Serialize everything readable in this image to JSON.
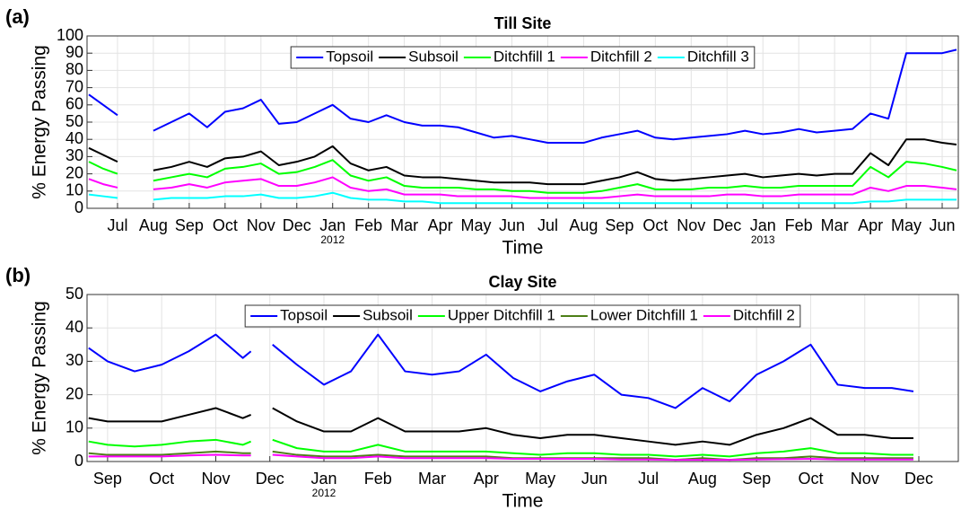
{
  "chart_data": [
    {
      "type": "line",
      "panel_label": "(a)",
      "title": "Till Site",
      "x_label": "Time",
      "y_label": "% Energy Passing",
      "legend": "upper center",
      "grid": true,
      "xlim": [
        -0.85,
        23.45
      ],
      "ylim": [
        0,
        100
      ],
      "xticks": [
        {
          "value": 0,
          "label": "Jul"
        },
        {
          "value": 1,
          "label": "Aug"
        },
        {
          "value": 2,
          "label": "Sep"
        },
        {
          "value": 3,
          "label": "Oct"
        },
        {
          "value": 4,
          "label": "Nov"
        },
        {
          "value": 5,
          "label": "Dec"
        },
        {
          "value": 6,
          "label": "Jan"
        },
        {
          "value": 7,
          "label": "Feb"
        },
        {
          "value": 8,
          "label": "Mar"
        },
        {
          "value": 9,
          "label": "Apr"
        },
        {
          "value": 10,
          "label": "May"
        },
        {
          "value": 11,
          "label": "Jun"
        },
        {
          "value": 12,
          "label": "Jul"
        },
        {
          "value": 13,
          "label": "Aug"
        },
        {
          "value": 14,
          "label": "Sep"
        },
        {
          "value": 15,
          "label": "Oct"
        },
        {
          "value": 16,
          "label": "Nov"
        },
        {
          "value": 17,
          "label": "Dec"
        },
        {
          "value": 18,
          "label": "Jan"
        },
        {
          "value": 19,
          "label": "Feb"
        },
        {
          "value": 20,
          "label": "Mar"
        },
        {
          "value": 21,
          "label": "Apr"
        },
        {
          "value": 22,
          "label": "May"
        },
        {
          "value": 23,
          "label": "Jun"
        }
      ],
      "year_labels": [
        {
          "value": 6,
          "label": "2012"
        },
        {
          "value": 18,
          "label": "2013"
        }
      ],
      "yticks": [
        0,
        10,
        20,
        30,
        40,
        50,
        60,
        70,
        80,
        90,
        100
      ],
      "x": [
        -0.8,
        -0.4,
        0,
        0.5,
        1,
        1.5,
        2,
        2.5,
        3,
        3.5,
        4,
        4.5,
        5,
        5.5,
        6,
        6.5,
        7,
        7.5,
        8,
        8.5,
        9,
        9.5,
        10,
        10.5,
        11,
        11.5,
        12,
        12.5,
        13,
        13.5,
        14,
        14.5,
        15,
        15.5,
        16,
        16.5,
        17,
        17.5,
        18,
        18.5,
        19,
        19.5,
        20,
        20.5,
        21,
        21.5,
        22,
        22.5,
        23,
        23.4
      ],
      "series": [
        {
          "name": "Topsoil",
          "color": "#0000ff",
          "values": [
            66,
            60,
            54,
            null,
            45,
            50,
            55,
            47,
            56,
            58,
            63,
            49,
            50,
            55,
            60,
            52,
            50,
            54,
            50,
            48,
            48,
            47,
            44,
            41,
            42,
            40,
            38,
            38,
            38,
            41,
            43,
            45,
            41,
            40,
            41,
            42,
            43,
            45,
            43,
            44,
            46,
            44,
            45,
            46,
            55,
            52,
            90,
            90,
            90,
            92
          ]
        },
        {
          "name": "Subsoil",
          "color": "#000000",
          "values": [
            35,
            31,
            27,
            null,
            22,
            24,
            27,
            24,
            29,
            30,
            33,
            25,
            27,
            30,
            36,
            26,
            22,
            24,
            19,
            18,
            18,
            17,
            16,
            15,
            15,
            15,
            14,
            14,
            14,
            16,
            18,
            21,
            17,
            16,
            17,
            18,
            19,
            20,
            18,
            19,
            20,
            19,
            20,
            20,
            32,
            25,
            40,
            40,
            38,
            37
          ]
        },
        {
          "name": "Ditchfill 1",
          "color": "#00ff00",
          "values": [
            27,
            23,
            20,
            null,
            16,
            18,
            20,
            18,
            23,
            24,
            26,
            20,
            21,
            24,
            28,
            19,
            16,
            18,
            13,
            12,
            12,
            12,
            11,
            11,
            10,
            10,
            9,
            9,
            9,
            10,
            12,
            14,
            11,
            11,
            11,
            12,
            12,
            13,
            12,
            12,
            13,
            13,
            13,
            13,
            24,
            18,
            27,
            26,
            24,
            22
          ]
        },
        {
          "name": "Ditchfill 2",
          "color": "#ff00ff",
          "values": [
            17,
            14,
            12,
            null,
            11,
            12,
            14,
            12,
            15,
            16,
            17,
            13,
            13,
            15,
            18,
            12,
            10,
            11,
            8,
            8,
            8,
            7,
            7,
            7,
            7,
            6,
            6,
            6,
            6,
            6,
            7,
            8,
            7,
            7,
            7,
            7,
            8,
            8,
            7,
            7,
            8,
            8,
            8,
            8,
            12,
            10,
            13,
            13,
            12,
            11
          ]
        },
        {
          "name": "Ditchfill 3",
          "color": "#00ffff",
          "values": [
            8,
            7,
            6,
            null,
            5,
            6,
            6,
            6,
            7,
            7,
            8,
            6,
            6,
            7,
            9,
            6,
            5,
            5,
            4,
            4,
            3,
            3,
            3,
            3,
            3,
            3,
            3,
            3,
            3,
            3,
            3,
            3,
            3,
            3,
            3,
            3,
            3,
            3,
            3,
            3,
            3,
            3,
            3,
            3,
            4,
            4,
            5,
            5,
            5,
            5
          ]
        }
      ]
    },
    {
      "type": "line",
      "panel_label": "(b)",
      "title": "Clay Site",
      "x_label": "Time",
      "y_label": "% Energy Passing",
      "legend": "upper center",
      "grid": true,
      "xlim": [
        -0.38,
        15.73
      ],
      "ylim": [
        0,
        50
      ],
      "xticks": [
        {
          "value": 0,
          "label": "Sep"
        },
        {
          "value": 1,
          "label": "Oct"
        },
        {
          "value": 2,
          "label": "Nov"
        },
        {
          "value": 3,
          "label": "Dec"
        },
        {
          "value": 4,
          "label": "Jan"
        },
        {
          "value": 5,
          "label": "Feb"
        },
        {
          "value": 6,
          "label": "Mar"
        },
        {
          "value": 7,
          "label": "Apr"
        },
        {
          "value": 8,
          "label": "May"
        },
        {
          "value": 9,
          "label": "Jun"
        },
        {
          "value": 10,
          "label": "Jul"
        },
        {
          "value": 11,
          "label": "Aug"
        },
        {
          "value": 12,
          "label": "Sep"
        },
        {
          "value": 13,
          "label": "Oct"
        },
        {
          "value": 14,
          "label": "Nov"
        },
        {
          "value": 15,
          "label": "Dec"
        }
      ],
      "year_labels": [
        {
          "value": 4,
          "label": "2012"
        }
      ],
      "yticks": [
        0,
        10,
        20,
        30,
        40,
        50
      ],
      "x": [
        -0.35,
        0,
        0.5,
        1,
        1.5,
        2,
        2.5,
        2.65,
        2.85,
        3.05,
        3.5,
        4,
        4.5,
        5,
        5.5,
        6,
        6.5,
        7,
        7.5,
        8,
        8.5,
        9,
        9.5,
        10,
        10.5,
        11,
        11.5,
        12,
        12.5,
        13,
        13.5,
        14,
        14.5,
        14.9
      ],
      "series": [
        {
          "name": "Topsoil",
          "color": "#0000ff",
          "values": [
            34,
            30,
            27,
            29,
            33,
            38,
            31,
            33,
            null,
            35,
            29,
            23,
            27,
            38,
            27,
            26,
            27,
            32,
            25,
            21,
            24,
            26,
            20,
            19,
            16,
            22,
            18,
            26,
            30,
            35,
            23,
            22,
            22,
            21
          ]
        },
        {
          "name": "Subsoil",
          "color": "#000000",
          "values": [
            13,
            12,
            12,
            12,
            14,
            16,
            13,
            14,
            null,
            16,
            12,
            9,
            9,
            13,
            9,
            9,
            9,
            10,
            8,
            7,
            8,
            8,
            7,
            6,
            5,
            6,
            5,
            8,
            10,
            13,
            8,
            8,
            7,
            7
          ]
        },
        {
          "name": "Upper Ditchfill 1",
          "color": "#00ff00",
          "values": [
            6,
            5,
            4.5,
            5,
            6,
            6.5,
            5,
            6,
            null,
            6.5,
            4,
            3,
            3,
            5,
            3,
            3,
            3,
            3,
            2.5,
            2,
            2.5,
            2.5,
            2,
            2,
            1.5,
            2,
            1.5,
            2.5,
            3,
            4,
            2.5,
            2.5,
            2,
            2
          ]
        },
        {
          "name": "Lower Ditchfill 1",
          "color": "#4d7f17",
          "values": [
            2.5,
            2,
            2,
            2,
            2.5,
            3,
            2.5,
            2.5,
            null,
            3,
            2,
            1.5,
            1.5,
            2,
            1.5,
            1.5,
            1.5,
            1.5,
            1,
            1,
            1,
            1,
            1,
            1,
            0.5,
            1,
            0.5,
            1,
            1,
            1.5,
            1,
            1,
            1,
            1
          ]
        },
        {
          "name": "Ditchfill 2",
          "color": "#ff00ff",
          "values": [
            1.5,
            1.5,
            1.5,
            1.5,
            1.8,
            2,
            1.8,
            1.8,
            null,
            2,
            1.5,
            1,
            1,
            1.5,
            1,
            1,
            1,
            1,
            0.8,
            0.8,
            0.8,
            0.8,
            0.6,
            0.6,
            0.5,
            0.5,
            0.5,
            0.6,
            0.7,
            0.8,
            0.6,
            0.6,
            0.6,
            0.6
          ]
        }
      ]
    }
  ]
}
